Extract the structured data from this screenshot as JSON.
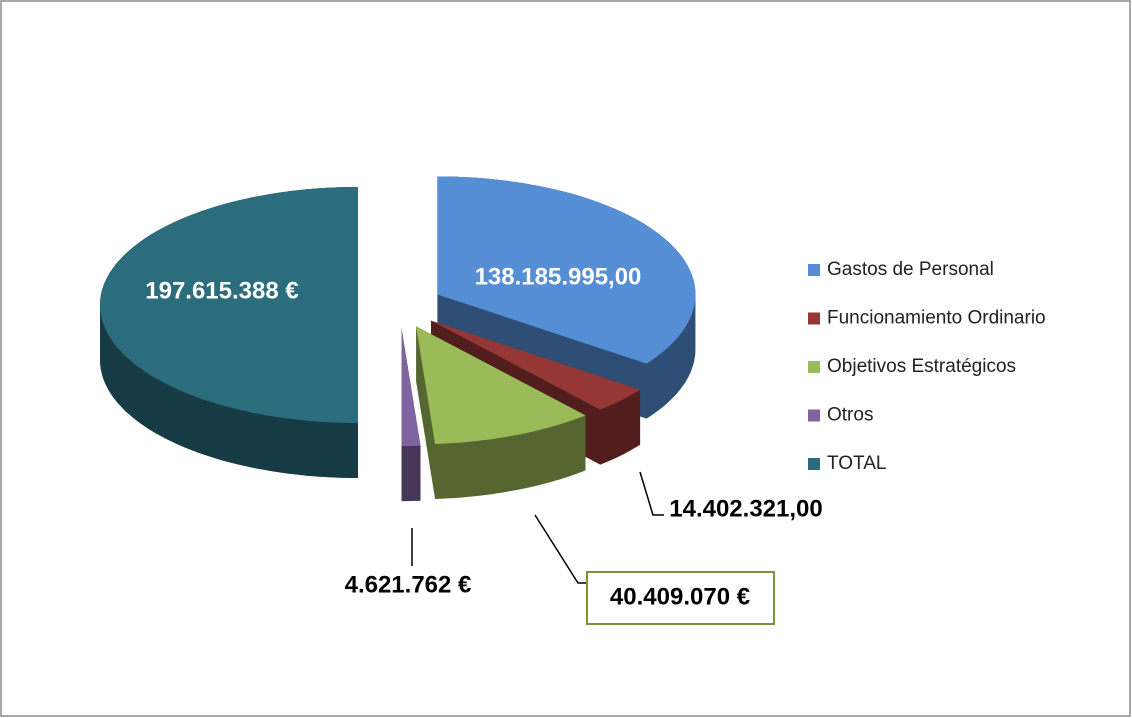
{
  "chart_data": {
    "type": "pie3d",
    "categories": [
      "Gastos de Personal",
      "Funcionamiento Ordinario",
      "Objetivos Estratégicos",
      "Otros",
      "TOTAL"
    ],
    "values": [
      138185995,
      14402321,
      40409070,
      4621762,
      197615388
    ],
    "value_labels": [
      "138.185.995,00",
      "14.402.321,00",
      "40.409.070 €",
      "4.621.762 €",
      "197.615.388 €"
    ],
    "colors": [
      "#558ed5",
      "#953735",
      "#9bbb59",
      "#8064a2",
      "#2b6c7d"
    ],
    "legend": "right"
  }
}
